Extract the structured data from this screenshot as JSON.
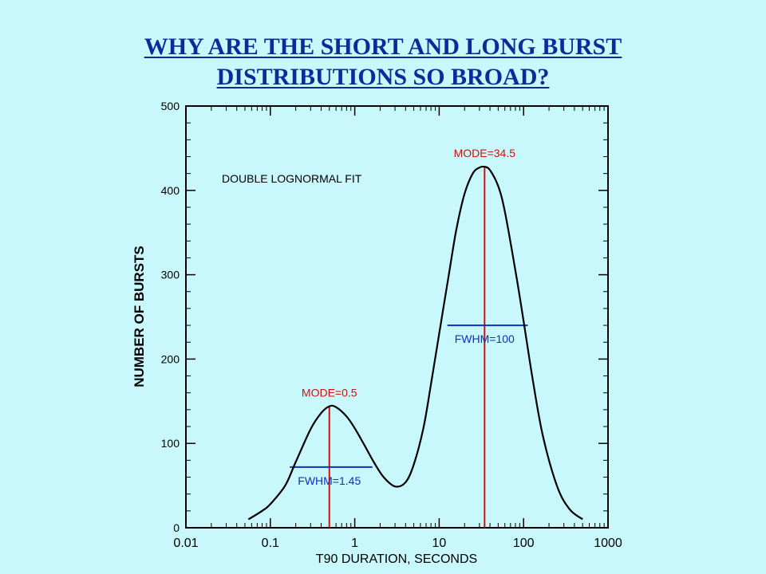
{
  "title_lines": [
    "WHY ARE THE SHORT AND LONG BURST",
    "DISTRIBUTIONS  SO BROAD?"
  ],
  "chart_data": {
    "type": "line",
    "xlabel": "T90 DURATION, SECONDS",
    "ylabel": "NUMBER OF BURSTS",
    "xscale": "log",
    "xlim": [
      0.01,
      1000
    ],
    "ylim": [
      0,
      500
    ],
    "xticks": [
      0.01,
      0.1,
      1,
      10,
      100,
      1000
    ],
    "xtick_labels": [
      "0.01",
      "0.1",
      "1",
      "10",
      "100",
      "1000"
    ],
    "yticks": [
      0,
      100,
      200,
      300,
      400,
      500
    ],
    "ytick_labels": [
      "0",
      "100",
      "200",
      "300",
      "400",
      "500"
    ],
    "grid": false,
    "annotation": "DOUBLE LOGNORMAL FIT",
    "series": [
      {
        "x": [
          0.055,
          0.08,
          0.1,
          0.15,
          0.2,
          0.3,
          0.4,
          0.5,
          0.6,
          0.8,
          1.0,
          1.3,
          1.7,
          2.2,
          3.0,
          4.0,
          5.0,
          6.5,
          8.0,
          10,
          13,
          16,
          20,
          25,
          30,
          34.5,
          40,
          50,
          60,
          80,
          100,
          130,
          170,
          250,
          350,
          500
        ],
        "y": [
          10,
          20,
          28,
          50,
          78,
          117,
          136,
          144,
          143,
          132,
          118,
          98,
          77,
          60,
          49,
          54,
          75,
          118,
          170,
          230,
          300,
          354,
          396,
          420,
          427,
          428,
          424,
          405,
          375,
          305,
          245,
          172,
          108,
          49,
          22,
          10
        ]
      }
    ],
    "components": [
      {
        "mode_label": "MODE=0.5",
        "mode": 0.5,
        "peak": 144,
        "fwhm_label": "FWHM=1.45",
        "fwhm_x": [
          0.17,
          1.62
        ],
        "fwhm_y": 72
      },
      {
        "mode_label": "MODE=34.5",
        "mode": 34.5,
        "peak": 428,
        "fwhm_label": "FWHM=100",
        "fwhm_x": [
          12.5,
          112
        ],
        "fwhm_y": 240
      }
    ],
    "colors": {
      "curve": "#000000",
      "mode_line": "#d01010",
      "fwhm_line": "#1030c0",
      "axis": "#000000"
    }
  }
}
